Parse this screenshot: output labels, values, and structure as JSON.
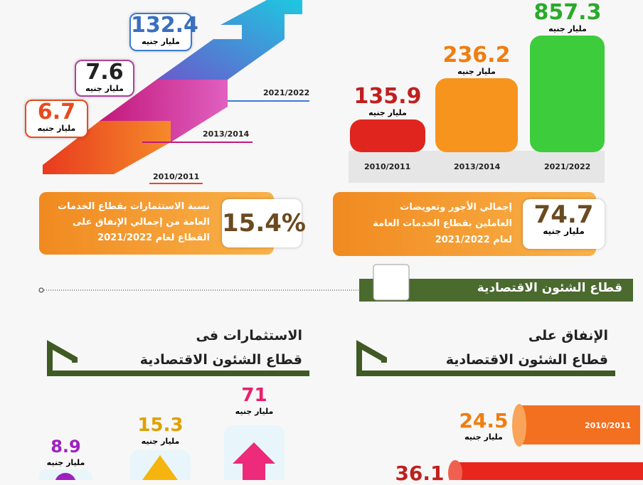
{
  "services_investment_steps": [
    {
      "value": "6.7",
      "unit": "مليار جنيه",
      "year": "2010/2011"
    },
    {
      "value": "7.6",
      "unit": "مليار جنيه",
      "year": "2013/2014"
    },
    {
      "value": "132.4",
      "unit": "مليار جنيه",
      "year": "2021/2022"
    }
  ],
  "services_spending_bars": [
    {
      "value": "135.9",
      "unit": "مليار جنيه",
      "year": "2010/2011"
    },
    {
      "value": "236.2",
      "unit": "مليار جنيه",
      "year": "2013/2014"
    },
    {
      "value": "857.3",
      "unit": "مليار جنيه",
      "year": "2021/2022"
    }
  ],
  "investment_share": {
    "lines": [
      "نسبة الاستثمارات بقطاع الخدمات",
      "العامة من إجمالي الإنفاق على",
      "القطاع لعام 2021/2022"
    ],
    "value": "15.4%"
  },
  "wages": {
    "lines": [
      "إجمالي الأجور وتعويضات",
      "العاملين بقطاع الخدمات العامة",
      "لعام 2021/2022"
    ],
    "value": "74.7",
    "unit": "مليار جنيه"
  },
  "section_title": "قطاع الشئون الاقتصادية",
  "investment_heading": [
    "الاستثمارات فى",
    "قطاع الشئون الاقتصادية"
  ],
  "spending_heading": [
    "الإنفاق على",
    "قطاع الشئون الاقتصادية"
  ],
  "economic_investments": [
    {
      "value": "71",
      "unit": "مليار جنيه"
    },
    {
      "value": "15.3",
      "unit": "مليار جنيه"
    },
    {
      "value": "8.9",
      "unit": "مليار جنيه"
    }
  ],
  "economic_spending": [
    {
      "value": "24.5",
      "unit": "مليار جنيه",
      "year": "2010/2011"
    },
    {
      "value": "36.1"
    }
  ]
}
